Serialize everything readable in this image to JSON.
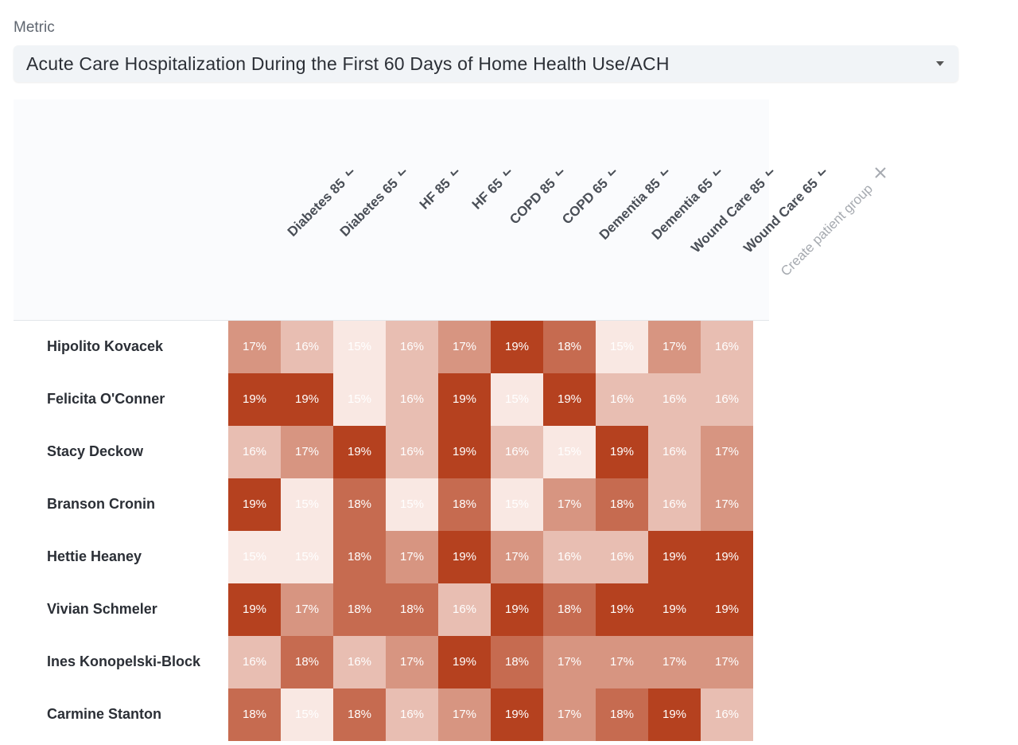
{
  "filter_label": "Metric",
  "filter_value": "Acute Care Hospitalization During the First 60 Days of Home Health Use/ACH",
  "create_label": "Create patient group",
  "chart_data": {
    "type": "heatmap",
    "categories": [
      "Diabetes 85",
      "Diabetes 65",
      "HF 85",
      "HF 65",
      "COPD 85",
      "COPD 65",
      "Dementia 85",
      "Dementia 65",
      "Wound Care 85",
      "Wound Care 65"
    ],
    "rows": [
      "Hipolito Kovacek",
      "Felicita O'Conner",
      "Stacy Deckow",
      "Branson Cronin",
      "Hettie Heaney",
      "Vivian Schmeler",
      "Ines Konopelski-Block",
      "Carmine Stanton"
    ],
    "values": [
      [
        17,
        16,
        15,
        16,
        17,
        19,
        18,
        15,
        17,
        16
      ],
      [
        19,
        19,
        15,
        16,
        19,
        15,
        19,
        16,
        16,
        16
      ],
      [
        16,
        17,
        19,
        16,
        19,
        16,
        15,
        19,
        16,
        17
      ],
      [
        19,
        15,
        18,
        15,
        18,
        15,
        17,
        18,
        16,
        17
      ],
      [
        15,
        15,
        18,
        17,
        19,
        17,
        16,
        16,
        19,
        19
      ],
      [
        19,
        17,
        18,
        18,
        16,
        19,
        18,
        19,
        19,
        19
      ],
      [
        16,
        18,
        16,
        17,
        19,
        18,
        17,
        17,
        17,
        17
      ],
      [
        18,
        15,
        18,
        16,
        17,
        19,
        17,
        18,
        19,
        16
      ]
    ],
    "value_labels": [
      [
        "17%",
        "16%",
        "15%",
        "16%",
        "17%",
        "19%",
        "18%",
        "15%",
        "17%",
        "16%"
      ],
      [
        "19%",
        "19%",
        "15%",
        "16%",
        "19%",
        "15%",
        "19%",
        "16%",
        "16%",
        "16%"
      ],
      [
        "16%",
        "17%",
        "19%",
        "16%",
        "19%",
        "16%",
        "15%",
        "19%",
        "16%",
        "17%"
      ],
      [
        "19%",
        "15%",
        "18%",
        "15%",
        "18%",
        "15%",
        "17%",
        "18%",
        "16%",
        "17%"
      ],
      [
        "15%",
        "15%",
        "18%",
        "17%",
        "19%",
        "17%",
        "16%",
        "16%",
        "19%",
        "19%"
      ],
      [
        "19%",
        "17%",
        "18%",
        "18%",
        "16%",
        "19%",
        "18%",
        "19%",
        "19%",
        "19%"
      ],
      [
        "16%",
        "18%",
        "16%",
        "17%",
        "19%",
        "18%",
        "17%",
        "17%",
        "17%",
        "17%"
      ],
      [
        "18%",
        "15%",
        "18%",
        "16%",
        "17%",
        "19%",
        "17%",
        "18%",
        "19%",
        "16%"
      ]
    ],
    "color_range": [
      "#f9e8e3",
      "#b5411f"
    ]
  }
}
